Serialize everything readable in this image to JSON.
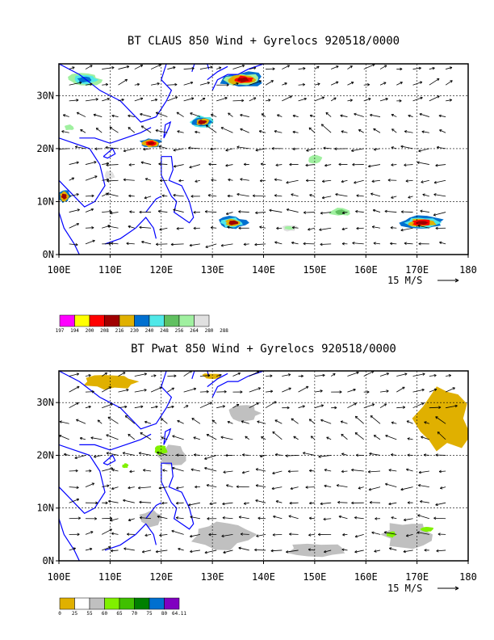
{
  "chart_data": [
    {
      "type": "heatmap",
      "title": "BT CLAUS 850 Wind + Gyrelocs 920518/0000",
      "x_ticks": [
        "100E",
        "110E",
        "120E",
        "130E",
        "140E",
        "150E",
        "160E",
        "170E",
        "180"
      ],
      "y_ticks": [
        "0N",
        "10N",
        "20N",
        "30N"
      ],
      "xlim": [
        100,
        180
      ],
      "ylim": [
        0,
        36
      ],
      "grid": true,
      "vector_scale_label": "15 M/S",
      "legend": {
        "labels": [
          "197",
          "194",
          "200",
          "208",
          "216",
          "230",
          "240",
          "248",
          "256",
          "264",
          "280",
          "288"
        ],
        "colors": [
          "#ff00ff",
          "#ffff00",
          "#ff0000",
          "#a00000",
          "#e0b000",
          "#0070d0",
          "#50e8e8",
          "#60c060",
          "#a0f0a0",
          "#e0e0e0"
        ]
      },
      "features": [
        {
          "label": "cold cloud tops",
          "lon": 136,
          "lat": 33
        },
        {
          "label": "cold cloud tops",
          "lon": 118,
          "lat": 21
        },
        {
          "label": "cold cloud tops",
          "lon": 128,
          "lat": 25
        },
        {
          "label": "cold cloud tops",
          "lon": 101,
          "lat": 11
        },
        {
          "label": "cold cloud tops",
          "lon": 133,
          "lat": 6
        },
        {
          "label": "cold cloud tops",
          "lon": 170,
          "lat": 6
        }
      ]
    },
    {
      "type": "heatmap",
      "title": "BT Pwat 850 Wind + Gyrelocs 920518/0000",
      "x_ticks": [
        "100E",
        "110E",
        "120E",
        "130E",
        "140E",
        "150E",
        "160E",
        "170E",
        "180"
      ],
      "y_ticks": [
        "0N",
        "10N",
        "20N",
        "30N"
      ],
      "xlim": [
        100,
        180
      ],
      "ylim": [
        0,
        36
      ],
      "grid": true,
      "vector_scale_label": "15 M/S",
      "legend": {
        "labels": [
          "0",
          "25",
          "55",
          "60",
          "65",
          "70",
          "75",
          "80",
          "64.11"
        ],
        "colors": [
          "#e0b000",
          "#ffffff",
          "#c0c0c0",
          "#80f000",
          "#40c000",
          "#008000",
          "#0070d0",
          "#8000c0"
        ]
      },
      "features": [
        {
          "label": "dry area",
          "lon": 175,
          "lat": 28
        },
        {
          "label": "dry area",
          "lon": 110,
          "lat": 33
        },
        {
          "label": "moist area",
          "lon": 120,
          "lat": 21
        },
        {
          "label": "moist area",
          "lon": 172,
          "lat": 6
        }
      ]
    }
  ],
  "panels": [
    {
      "title": "BT CLAUS 850 Wind + Gyrelocs 920518/0000",
      "scale": "15 M/S"
    },
    {
      "title": "BT Pwat 850 Wind + Gyrelocs 920518/0000",
      "scale": "15 M/S"
    }
  ]
}
